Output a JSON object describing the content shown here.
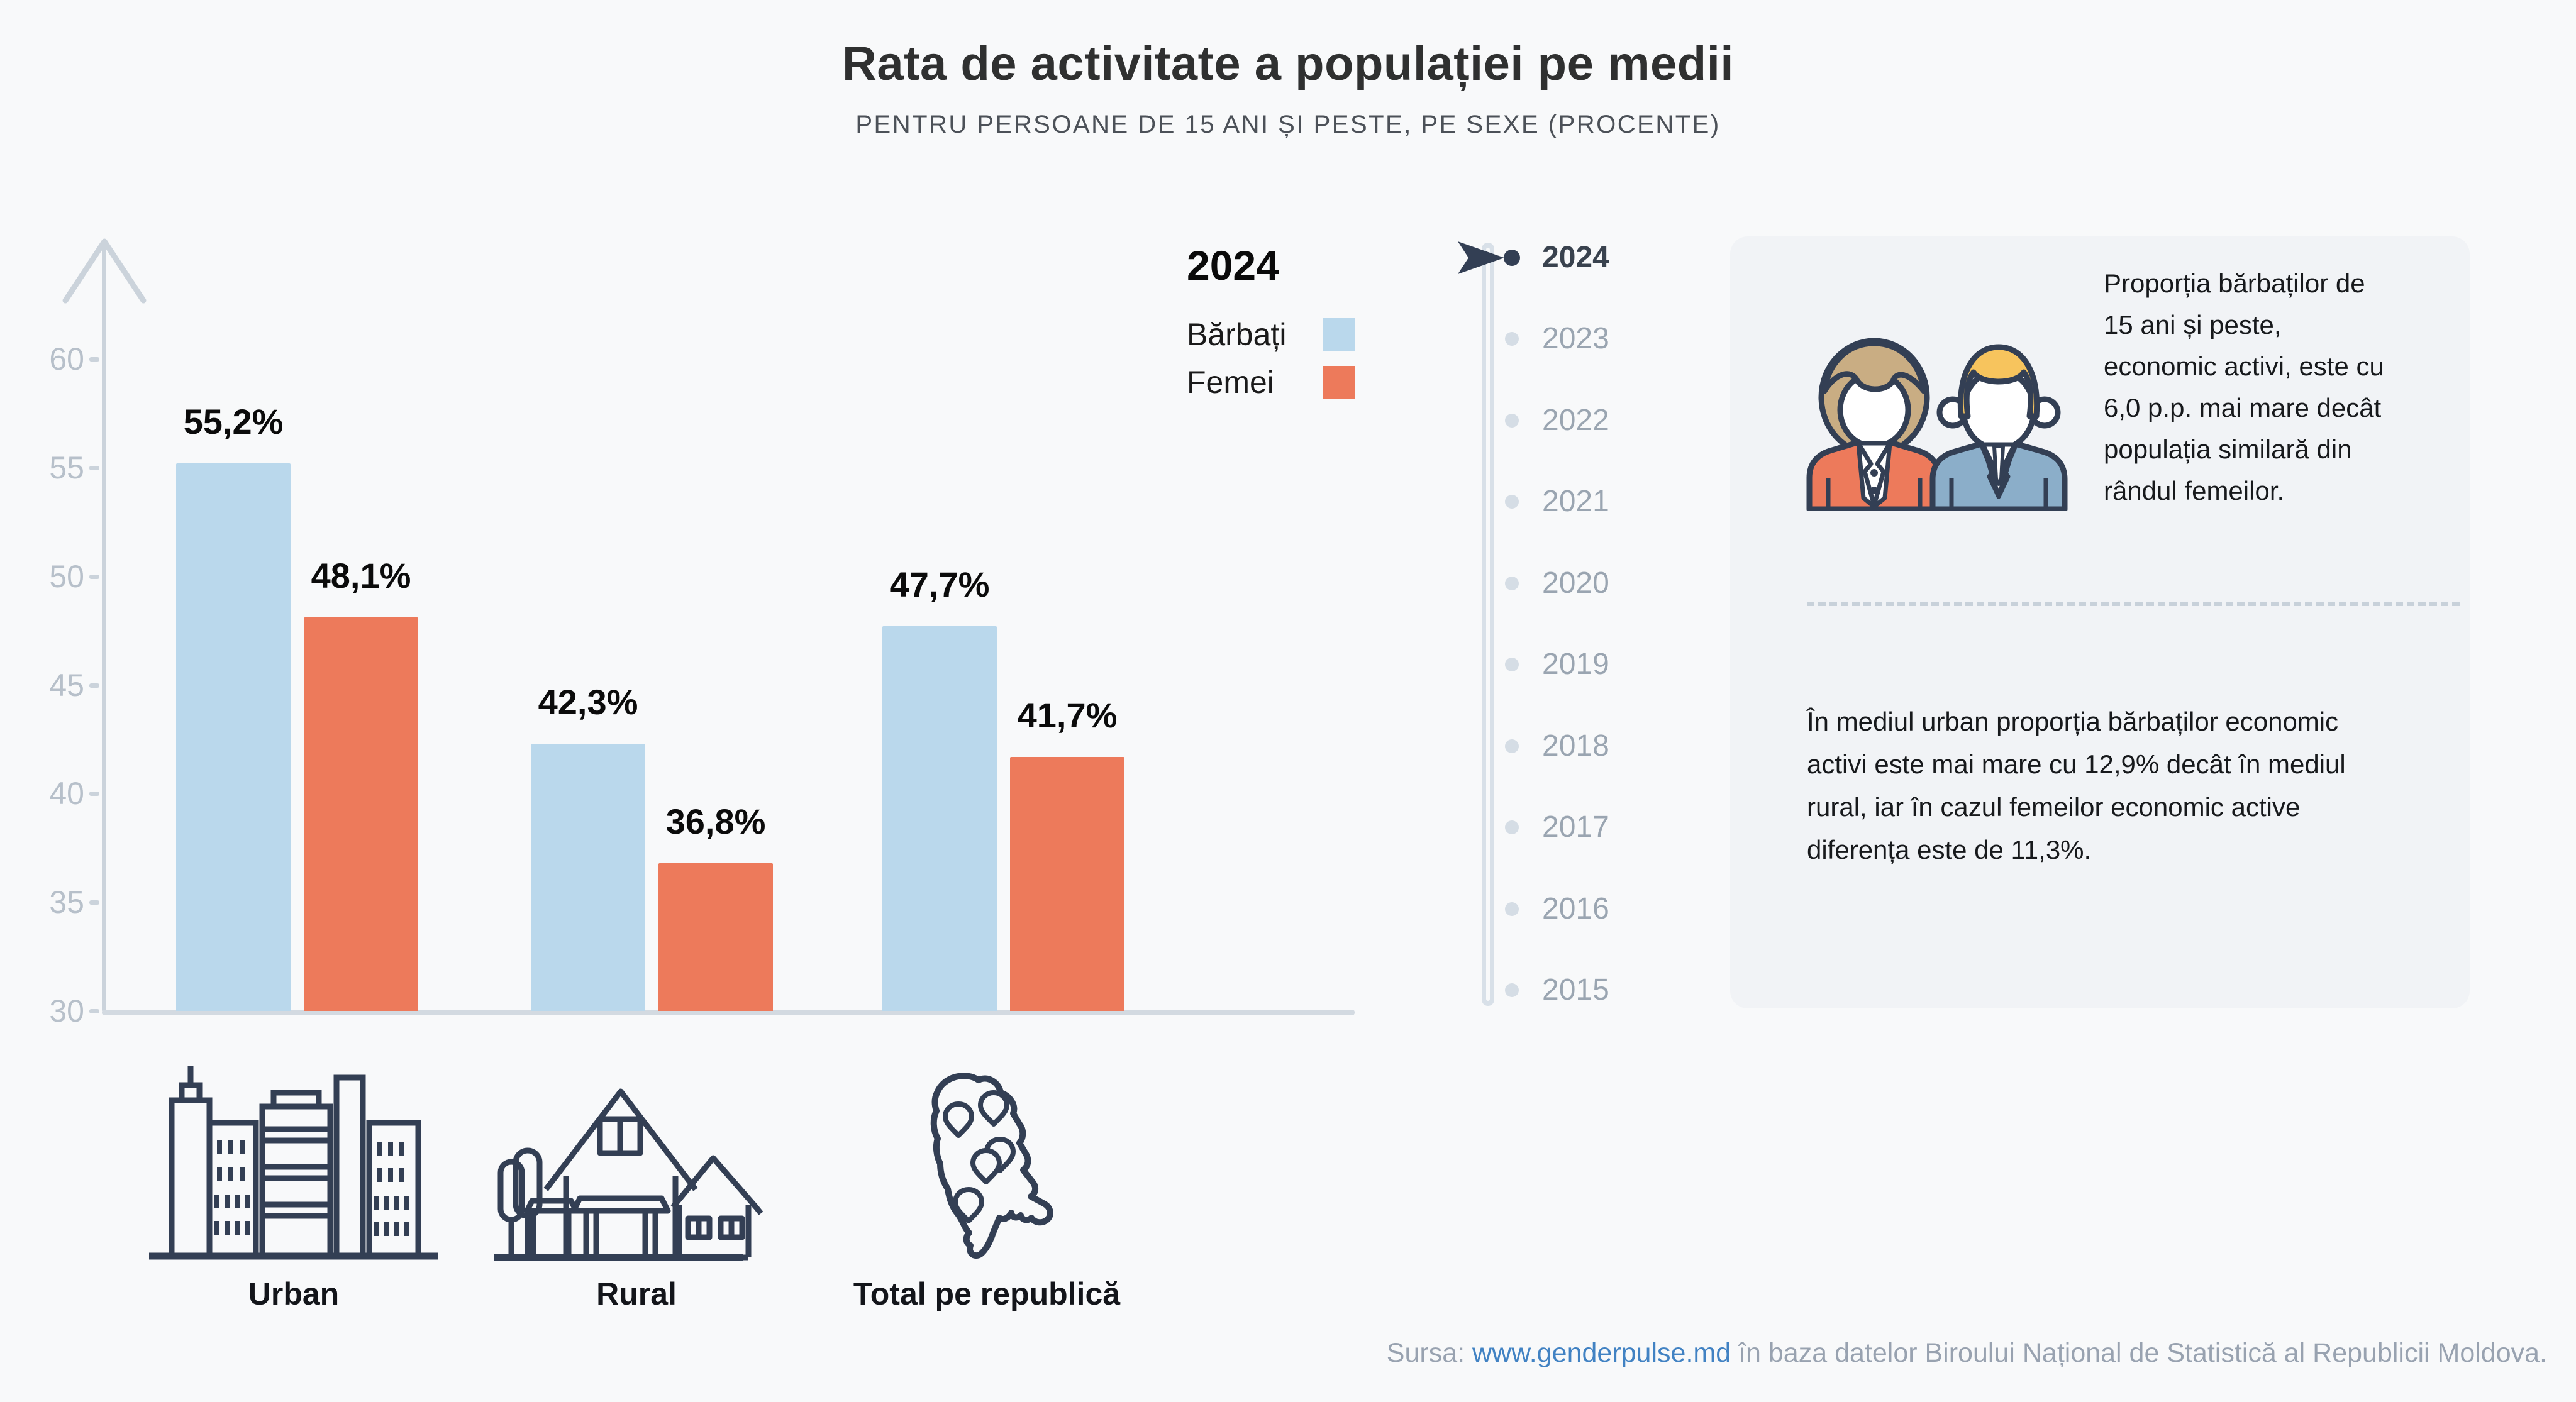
{
  "title": "Rata de activitate a populației pe medii",
  "subtitle": "PENTRU PERSOANE DE 15 ANI ȘI PESTE, PE SEXE (PROCENTE)",
  "chart_data": {
    "type": "bar",
    "title": "Rata de activitate a populației pe medii",
    "subtitle": "PENTRU PERSOANE DE 15 ANI ȘI PESTE, PE SEXE (PROCENTE)",
    "categories": [
      "Urban",
      "Rural",
      "Total pe republică"
    ],
    "series": [
      {
        "name": "Bărbați",
        "color": "#BAD8EC",
        "values": [
          55.2,
          42.3,
          47.7
        ],
        "labels": [
          "55,2%",
          "42,3%",
          "47,7%"
        ]
      },
      {
        "name": "Femei",
        "color": "#ED7A5B",
        "values": [
          48.1,
          36.8,
          41.7
        ],
        "labels": [
          "48,1%",
          "36,8%",
          "41,7%"
        ]
      }
    ],
    "ylim": [
      30,
      63
    ],
    "yticks": [
      60,
      55,
      50,
      45,
      40,
      35,
      30
    ],
    "grid": false,
    "legend_position": "top-right",
    "selected_year": "2024"
  },
  "legend": {
    "year": "2024"
  },
  "timeline": {
    "years": [
      "2024",
      "2023",
      "2022",
      "2021",
      "2020",
      "2019",
      "2018",
      "2017",
      "2016",
      "2015"
    ],
    "selected": "2024"
  },
  "panel": {
    "insight1": "Proporția bărbaților de 15 ani și peste, economic activi, este cu 6,0 p.p. mai mare decât populația similară din rândul femeilor.",
    "insight2": "În mediul urban proporția bărbaților economic activi este mai mare cu 12,9% decât în mediul rural, iar în cazul femeilor economic active diferența este de 11,3%."
  },
  "footer": {
    "source_prefix": "Sursa: ",
    "source_link": "www.genderpulse.md",
    "source_suffix": " în baza datelor Biroului Național de Statistică al Republicii Moldova."
  },
  "colors": {
    "male_bar": "#BAD8EC",
    "female_bar": "#ED7A5B",
    "navy_outline": "#333F54",
    "axis_gray": "#CBD3DB",
    "inactive_year": "#9AA5B1",
    "active_year": "#39424E",
    "panel_bg": "#F1F3F6",
    "link_blue": "#4182C3"
  }
}
